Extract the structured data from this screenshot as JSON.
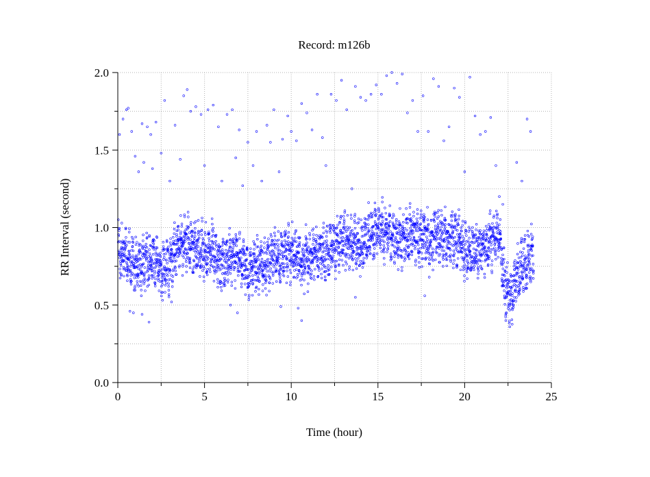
{
  "chart_data": {
    "type": "scatter",
    "title": "Record:  m126b",
    "xlabel": "Time (hour)",
    "ylabel": "RR Interval (second)",
    "xlim": [
      0,
      25
    ],
    "ylim": [
      0.0,
      2.0
    ],
    "xticks": [
      0,
      5,
      10,
      15,
      20,
      25
    ],
    "xtick_labels": [
      "0",
      "5",
      "10",
      "15",
      "20",
      "25"
    ],
    "yticks": [
      0.0,
      0.5,
      1.0,
      1.5,
      2.0
    ],
    "ytick_labels": [
      "0.0",
      "0.5",
      "1.0",
      "1.5",
      "2.0"
    ],
    "grid": true,
    "marker_color": "#0000ff",
    "series": [
      {
        "baseline_trend": [
          [
            0.0,
            0.86
          ],
          [
            0.5,
            0.8
          ],
          [
            1.0,
            0.74
          ],
          [
            1.5,
            0.78
          ],
          [
            2.0,
            0.8
          ],
          [
            2.5,
            0.72
          ],
          [
            3.0,
            0.78
          ],
          [
            3.5,
            0.88
          ],
          [
            4.0,
            0.9
          ],
          [
            4.5,
            0.88
          ],
          [
            5.0,
            0.84
          ],
          [
            5.5,
            0.86
          ],
          [
            6.0,
            0.76
          ],
          [
            6.5,
            0.82
          ],
          [
            7.0,
            0.8
          ],
          [
            7.5,
            0.72
          ],
          [
            8.0,
            0.74
          ],
          [
            8.5,
            0.76
          ],
          [
            9.0,
            0.8
          ],
          [
            9.5,
            0.82
          ],
          [
            10.0,
            0.84
          ],
          [
            10.5,
            0.78
          ],
          [
            11.0,
            0.8
          ],
          [
            11.5,
            0.84
          ],
          [
            12.0,
            0.82
          ],
          [
            12.5,
            0.88
          ],
          [
            13.0,
            0.92
          ],
          [
            13.5,
            0.9
          ],
          [
            14.0,
            0.86
          ],
          [
            14.5,
            0.96
          ],
          [
            15.0,
            0.98
          ],
          [
            15.5,
            0.98
          ],
          [
            16.0,
            0.94
          ],
          [
            16.5,
            0.92
          ],
          [
            17.0,
            0.96
          ],
          [
            17.5,
            0.94
          ],
          [
            18.0,
            0.9
          ],
          [
            18.5,
            0.96
          ],
          [
            19.0,
            0.92
          ],
          [
            19.5,
            0.94
          ],
          [
            20.0,
            0.86
          ],
          [
            20.5,
            0.84
          ],
          [
            21.0,
            0.86
          ],
          [
            21.5,
            0.9
          ],
          [
            22.0,
            0.96
          ],
          [
            22.3,
            0.62
          ],
          [
            22.7,
            0.56
          ],
          [
            23.0,
            0.66
          ],
          [
            23.5,
            0.78
          ],
          [
            24.0,
            0.82
          ]
        ],
        "outliers": [
          [
            0.1,
            1.6
          ],
          [
            0.3,
            1.7
          ],
          [
            0.5,
            1.76
          ],
          [
            0.6,
            1.77
          ],
          [
            0.8,
            1.62
          ],
          [
            1.0,
            1.46
          ],
          [
            1.2,
            1.36
          ],
          [
            1.4,
            1.67
          ],
          [
            1.5,
            1.42
          ],
          [
            1.7,
            1.65
          ],
          [
            1.9,
            1.6
          ],
          [
            2.0,
            1.38
          ],
          [
            2.2,
            1.68
          ],
          [
            2.5,
            1.48
          ],
          [
            2.7,
            1.82
          ],
          [
            3.0,
            1.3
          ],
          [
            3.3,
            1.66
          ],
          [
            3.6,
            1.44
          ],
          [
            3.8,
            1.85
          ],
          [
            4.0,
            1.89
          ],
          [
            4.2,
            1.75
          ],
          [
            4.5,
            1.78
          ],
          [
            4.8,
            1.73
          ],
          [
            5.0,
            1.4
          ],
          [
            5.2,
            1.76
          ],
          [
            5.5,
            1.79
          ],
          [
            5.8,
            1.65
          ],
          [
            6.0,
            1.3
          ],
          [
            6.3,
            1.73
          ],
          [
            6.6,
            1.76
          ],
          [
            6.8,
            1.45
          ],
          [
            7.0,
            1.63
          ],
          [
            7.2,
            1.27
          ],
          [
            7.5,
            1.55
          ],
          [
            7.8,
            1.4
          ],
          [
            8.0,
            1.62
          ],
          [
            8.3,
            1.3
          ],
          [
            8.6,
            1.66
          ],
          [
            8.8,
            1.55
          ],
          [
            9.0,
            1.76
          ],
          [
            9.3,
            1.36
          ],
          [
            9.5,
            1.57
          ],
          [
            9.8,
            1.72
          ],
          [
            10.0,
            1.62
          ],
          [
            10.3,
            1.56
          ],
          [
            10.6,
            1.8
          ],
          [
            10.9,
            1.74
          ],
          [
            11.2,
            1.63
          ],
          [
            11.5,
            1.86
          ],
          [
            11.8,
            1.58
          ],
          [
            12.0,
            1.4
          ],
          [
            12.3,
            1.86
          ],
          [
            12.6,
            1.82
          ],
          [
            12.9,
            1.95
          ],
          [
            13.2,
            1.76
          ],
          [
            13.5,
            1.25
          ],
          [
            13.7,
            1.91
          ],
          [
            14.0,
            1.84
          ],
          [
            14.3,
            1.82
          ],
          [
            14.6,
            1.86
          ],
          [
            14.9,
            1.92
          ],
          [
            15.2,
            1.86
          ],
          [
            15.5,
            1.98
          ],
          [
            15.8,
            2.0
          ],
          [
            16.1,
            1.93
          ],
          [
            16.4,
            1.99
          ],
          [
            16.7,
            1.74
          ],
          [
            17.0,
            1.82
          ],
          [
            17.3,
            1.62
          ],
          [
            17.6,
            1.85
          ],
          [
            17.9,
            1.62
          ],
          [
            18.2,
            1.96
          ],
          [
            18.5,
            1.91
          ],
          [
            18.8,
            1.56
          ],
          [
            19.1,
            1.65
          ],
          [
            19.4,
            1.9
          ],
          [
            19.7,
            1.84
          ],
          [
            20.0,
            1.36
          ],
          [
            20.3,
            1.97
          ],
          [
            20.6,
            1.72
          ],
          [
            20.9,
            1.6
          ],
          [
            21.2,
            1.62
          ],
          [
            21.5,
            1.71
          ],
          [
            21.8,
            1.4
          ],
          [
            22.0,
            1.2
          ],
          [
            22.2,
            1.15
          ],
          [
            23.0,
            1.42
          ],
          [
            23.3,
            1.3
          ],
          [
            23.6,
            1.7
          ],
          [
            23.8,
            1.62
          ],
          [
            0.7,
            0.46
          ],
          [
            0.9,
            0.45
          ],
          [
            1.4,
            0.44
          ],
          [
            1.8,
            0.39
          ],
          [
            3.1,
            0.52
          ],
          [
            6.5,
            0.5
          ],
          [
            6.9,
            0.45
          ],
          [
            9.4,
            0.49
          ],
          [
            10.4,
            0.48
          ],
          [
            10.6,
            0.4
          ],
          [
            13.7,
            0.55
          ],
          [
            17.7,
            0.56
          ],
          [
            22.4,
            0.45
          ],
          [
            22.6,
            0.36
          ]
        ]
      }
    ]
  }
}
